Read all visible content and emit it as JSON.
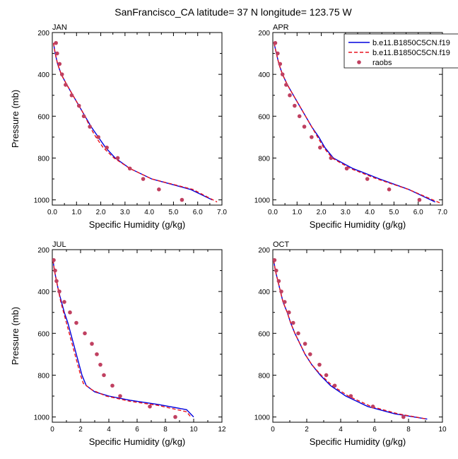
{
  "figure": {
    "title": "SanFrancisco_CA  latitude= 37 N longitude= 123.75 W"
  },
  "legend": {
    "entries": [
      {
        "label": "b.e11.B1850C5CN.f19",
        "style": "line",
        "color": "#0000dd"
      },
      {
        "label": "b.e11.B1850C5CN.f19",
        "style": "dashed",
        "color": "#e8141e"
      },
      {
        "label": "raobs",
        "style": "marker",
        "color": "#c04060"
      }
    ]
  },
  "colors": {
    "model1": "#0000dd",
    "model2": "#e8141e",
    "raobs": "#c04060"
  },
  "chart_data": [
    {
      "type": "line",
      "panel_label": "JAN",
      "xlabel": "Specific Humidity (g/kg)",
      "ylabel": "Pressure (mb)",
      "xlim": [
        0,
        7
      ],
      "ylim": [
        1025,
        200
      ],
      "y_inverted": true,
      "xticks": [
        0,
        1,
        2,
        3,
        4,
        5,
        6,
        7
      ],
      "xtick_labels": [
        "0.0",
        "1.0",
        "2.0",
        "3.0",
        "4.0",
        "5.0",
        "6.0",
        "7.0"
      ],
      "yticks": [
        200,
        400,
        600,
        800,
        1000
      ],
      "ytick_labels": [
        "200",
        "400",
        "600",
        "800",
        "1000"
      ],
      "series": [
        {
          "name": "b.e11.B1850C5CN.f19",
          "style": "solid",
          "color": "#0000dd",
          "points": [
            [
              0.05,
              250
            ],
            [
              0.12,
              300
            ],
            [
              0.22,
              350
            ],
            [
              0.37,
              400
            ],
            [
              0.6,
              450
            ],
            [
              0.85,
              500
            ],
            [
              1.1,
              550
            ],
            [
              1.35,
              600
            ],
            [
              1.6,
              650
            ],
            [
              1.9,
              700
            ],
            [
              2.2,
              750
            ],
            [
              2.6,
              800
            ],
            [
              3.2,
              850
            ],
            [
              4.1,
              900
            ],
            [
              5.7,
              950
            ],
            [
              6.6,
              1000
            ]
          ]
        },
        {
          "name": "b.e11.B1850C5CN.f19",
          "style": "dashed",
          "color": "#e8141e",
          "points": [
            [
              0.05,
              250
            ],
            [
              0.12,
              300
            ],
            [
              0.22,
              350
            ],
            [
              0.37,
              400
            ],
            [
              0.6,
              450
            ],
            [
              0.85,
              500
            ],
            [
              1.1,
              550
            ],
            [
              1.35,
              600
            ],
            [
              1.55,
              650
            ],
            [
              1.8,
              700
            ],
            [
              2.1,
              750
            ],
            [
              2.55,
              800
            ],
            [
              3.2,
              850
            ],
            [
              4.1,
              900
            ],
            [
              5.8,
              950
            ],
            [
              6.8,
              1010
            ]
          ]
        },
        {
          "name": "raobs",
          "style": "marker",
          "color": "#c04060",
          "points": [
            [
              0.15,
              250
            ],
            [
              0.2,
              300
            ],
            [
              0.3,
              350
            ],
            [
              0.4,
              400
            ],
            [
              0.55,
              450
            ],
            [
              0.8,
              500
            ],
            [
              1.1,
              550
            ],
            [
              1.3,
              600
            ],
            [
              1.55,
              650
            ],
            [
              1.9,
              700
            ],
            [
              2.25,
              750
            ],
            [
              2.7,
              800
            ],
            [
              3.2,
              850
            ],
            [
              3.75,
              900
            ],
            [
              4.4,
              950
            ],
            [
              5.35,
              1000
            ]
          ]
        }
      ]
    },
    {
      "type": "line",
      "panel_label": "APR",
      "xlabel": "Specific Humidity (g/kg)",
      "ylabel": "",
      "xlim": [
        0,
        7
      ],
      "ylim": [
        1025,
        200
      ],
      "y_inverted": true,
      "xticks": [
        0,
        1,
        2,
        3,
        4,
        5,
        6,
        7
      ],
      "xtick_labels": [
        "0.0",
        "1.0",
        "2.0",
        "3.0",
        "4.0",
        "5.0",
        "6.0",
        "7.0"
      ],
      "yticks": [
        200,
        400,
        600,
        800,
        1000
      ],
      "ytick_labels": [
        "200",
        "400",
        "600",
        "800",
        "1000"
      ],
      "series": [
        {
          "name": "b.e11.B1850C5CN.f19",
          "style": "solid",
          "color": "#0000dd",
          "points": [
            [
              0.05,
              250
            ],
            [
              0.15,
              300
            ],
            [
              0.25,
              350
            ],
            [
              0.4,
              400
            ],
            [
              0.6,
              450
            ],
            [
              0.85,
              500
            ],
            [
              1.1,
              550
            ],
            [
              1.35,
              600
            ],
            [
              1.6,
              650
            ],
            [
              1.9,
              700
            ],
            [
              2.15,
              750
            ],
            [
              2.5,
              800
            ],
            [
              3.3,
              850
            ],
            [
              4.4,
              900
            ],
            [
              5.6,
              950
            ],
            [
              6.7,
              1010
            ]
          ]
        },
        {
          "name": "b.e11.B1850C5CN.f19",
          "style": "dashed",
          "color": "#e8141e",
          "points": [
            [
              0.05,
              250
            ],
            [
              0.15,
              300
            ],
            [
              0.25,
              350
            ],
            [
              0.4,
              400
            ],
            [
              0.6,
              450
            ],
            [
              0.85,
              500
            ],
            [
              1.1,
              550
            ],
            [
              1.35,
              600
            ],
            [
              1.6,
              650
            ],
            [
              1.85,
              700
            ],
            [
              2.1,
              750
            ],
            [
              2.45,
              800
            ],
            [
              3.2,
              850
            ],
            [
              4.3,
              900
            ],
            [
              5.6,
              950
            ],
            [
              6.9,
              1015
            ]
          ]
        },
        {
          "name": "raobs",
          "style": "marker",
          "color": "#c04060",
          "points": [
            [
              0.1,
              250
            ],
            [
              0.2,
              300
            ],
            [
              0.3,
              350
            ],
            [
              0.4,
              400
            ],
            [
              0.55,
              450
            ],
            [
              0.7,
              500
            ],
            [
              0.9,
              550
            ],
            [
              1.1,
              600
            ],
            [
              1.3,
              650
            ],
            [
              1.6,
              700
            ],
            [
              1.95,
              750
            ],
            [
              2.4,
              800
            ],
            [
              3.05,
              850
            ],
            [
              3.9,
              900
            ],
            [
              4.8,
              950
            ],
            [
              6.05,
              1000
            ]
          ]
        }
      ]
    },
    {
      "type": "line",
      "panel_label": "JUL",
      "xlabel": "Specific Humidity (g/kg)",
      "ylabel": "Pressure (mb)",
      "xlim": [
        0,
        12
      ],
      "ylim": [
        1025,
        200
      ],
      "y_inverted": true,
      "xticks": [
        0,
        2,
        4,
        6,
        8,
        10,
        12
      ],
      "xtick_labels": [
        "0",
        "2",
        "4",
        "6",
        "8",
        "10",
        "12"
      ],
      "yticks": [
        200,
        400,
        600,
        800,
        1000
      ],
      "ytick_labels": [
        "200",
        "400",
        "600",
        "800",
        "1000"
      ],
      "series": [
        {
          "name": "b.e11.B1850C5CN.f19",
          "style": "solid",
          "color": "#0000dd",
          "points": [
            [
              0.05,
              250
            ],
            [
              0.15,
              300
            ],
            [
              0.3,
              350
            ],
            [
              0.45,
              400
            ],
            [
              0.65,
              450
            ],
            [
              0.85,
              500
            ],
            [
              1.1,
              550
            ],
            [
              1.3,
              600
            ],
            [
              1.5,
              650
            ],
            [
              1.7,
              700
            ],
            [
              1.9,
              750
            ],
            [
              2.1,
              800
            ],
            [
              2.4,
              850
            ],
            [
              3.0,
              880
            ],
            [
              4.0,
              900
            ],
            [
              5.5,
              920
            ],
            [
              7.5,
              940
            ],
            [
              9.5,
              965
            ],
            [
              10.0,
              1000
            ]
          ]
        },
        {
          "name": "b.e11.B1850C5CN.f19",
          "style": "dashed",
          "color": "#e8141e",
          "points": [
            [
              0.05,
              250
            ],
            [
              0.15,
              300
            ],
            [
              0.3,
              350
            ],
            [
              0.45,
              400
            ],
            [
              0.6,
              450
            ],
            [
              0.8,
              500
            ],
            [
              1.0,
              550
            ],
            [
              1.2,
              600
            ],
            [
              1.4,
              650
            ],
            [
              1.6,
              700
            ],
            [
              1.8,
              750
            ],
            [
              2.0,
              800
            ],
            [
              2.2,
              840
            ],
            [
              2.8,
              870
            ],
            [
              3.8,
              900
            ],
            [
              5.5,
              925
            ],
            [
              7.5,
              945
            ],
            [
              9.5,
              975
            ],
            [
              9.8,
              1000
            ]
          ]
        },
        {
          "name": "raobs",
          "style": "marker",
          "color": "#c04060",
          "points": [
            [
              0.1,
              250
            ],
            [
              0.2,
              300
            ],
            [
              0.3,
              350
            ],
            [
              0.5,
              400
            ],
            [
              0.85,
              450
            ],
            [
              1.25,
              500
            ],
            [
              1.7,
              550
            ],
            [
              2.3,
              600
            ],
            [
              2.8,
              650
            ],
            [
              3.15,
              700
            ],
            [
              3.4,
              750
            ],
            [
              3.65,
              800
            ],
            [
              4.25,
              850
            ],
            [
              4.8,
              900
            ],
            [
              6.9,
              950
            ],
            [
              8.7,
              1000
            ]
          ]
        }
      ]
    },
    {
      "type": "line",
      "panel_label": "OCT",
      "xlabel": "Specific Humidity (g/kg)",
      "ylabel": "",
      "xlim": [
        0,
        10
      ],
      "ylim": [
        1025,
        200
      ],
      "y_inverted": true,
      "xticks": [
        0,
        2,
        4,
        6,
        8,
        10
      ],
      "xtick_labels": [
        "0",
        "2",
        "4",
        "6",
        "8",
        "10"
      ],
      "yticks": [
        200,
        400,
        600,
        800,
        1000
      ],
      "ytick_labels": [
        "200",
        "400",
        "600",
        "800",
        "1000"
      ],
      "series": [
        {
          "name": "b.e11.B1850C5CN.f19",
          "style": "solid",
          "color": "#0000dd",
          "points": [
            [
              0.05,
              250
            ],
            [
              0.15,
              300
            ],
            [
              0.3,
              350
            ],
            [
              0.45,
              400
            ],
            [
              0.6,
              450
            ],
            [
              0.85,
              500
            ],
            [
              1.05,
              550
            ],
            [
              1.3,
              600
            ],
            [
              1.6,
              650
            ],
            [
              1.9,
              700
            ],
            [
              2.3,
              750
            ],
            [
              2.8,
              800
            ],
            [
              3.4,
              850
            ],
            [
              4.3,
              900
            ],
            [
              5.6,
              950
            ],
            [
              7.2,
              985
            ],
            [
              9.1,
              1010
            ]
          ]
        },
        {
          "name": "b.e11.B1850C5CN.f19",
          "style": "dashed",
          "color": "#e8141e",
          "points": [
            [
              0.05,
              250
            ],
            [
              0.15,
              300
            ],
            [
              0.3,
              350
            ],
            [
              0.45,
              400
            ],
            [
              0.6,
              450
            ],
            [
              0.85,
              500
            ],
            [
              1.05,
              550
            ],
            [
              1.3,
              600
            ],
            [
              1.6,
              650
            ],
            [
              1.9,
              700
            ],
            [
              2.3,
              750
            ],
            [
              2.85,
              800
            ],
            [
              3.5,
              850
            ],
            [
              4.45,
              900
            ],
            [
              5.8,
              950
            ],
            [
              7.4,
              985
            ],
            [
              9.1,
              1010
            ]
          ]
        },
        {
          "name": "raobs",
          "style": "marker",
          "color": "#c04060",
          "points": [
            [
              0.1,
              250
            ],
            [
              0.2,
              300
            ],
            [
              0.35,
              350
            ],
            [
              0.5,
              400
            ],
            [
              0.7,
              450
            ],
            [
              0.95,
              500
            ],
            [
              1.2,
              550
            ],
            [
              1.5,
              600
            ],
            [
              1.9,
              650
            ],
            [
              2.2,
              700
            ],
            [
              2.75,
              750
            ],
            [
              3.15,
              800
            ],
            [
              3.65,
              850
            ],
            [
              4.6,
              900
            ],
            [
              5.9,
              950
            ],
            [
              7.7,
              1000
            ]
          ]
        }
      ]
    }
  ]
}
